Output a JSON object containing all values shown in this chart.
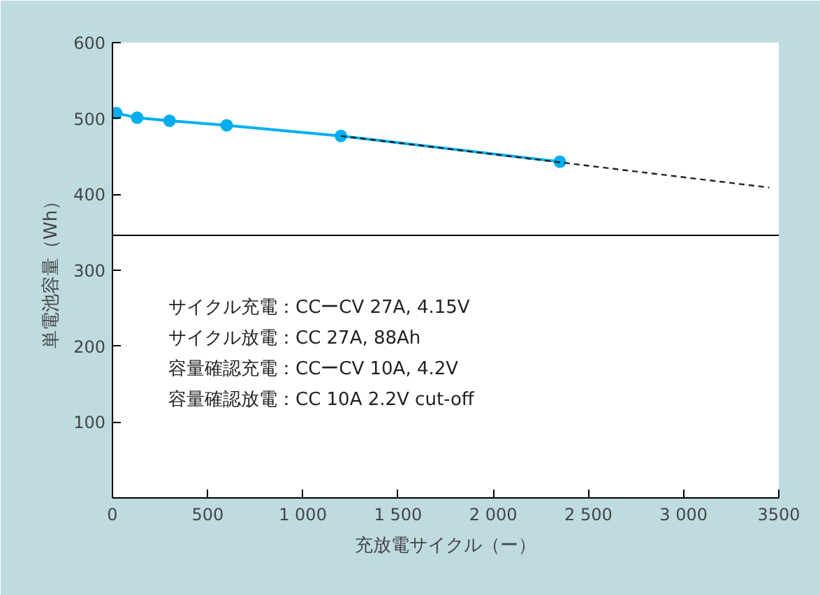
{
  "chart_data": {
    "type": "line",
    "xlabel": "充放電サイクル（ー）",
    "ylabel": "単電池容量（Wh）",
    "xlim": [
      0,
      3500
    ],
    "ylim": [
      0,
      600
    ],
    "xticks": [
      0,
      500,
      {
        "value": 1000,
        "label": "1 000"
      },
      {
        "value": 1500,
        "label": "1 500"
      },
      {
        "value": 2000,
        "label": "2 000"
      },
      {
        "value": 2500,
        "label": "2 500"
      },
      {
        "value": 3000,
        "label": "3 000"
      },
      3500
    ],
    "yticks": [
      100,
      200,
      300,
      400,
      500,
      600
    ],
    "grid": false,
    "series": [
      {
        "color": "#00aeef",
        "marker": "circle",
        "line_style": "solid",
        "x": [
          20,
          130,
          300,
          600,
          1200,
          2350
        ],
        "values": [
          507,
          501,
          497,
          491,
          477,
          443
        ]
      },
      {
        "color": "#222222",
        "marker": "none",
        "line_style": "dashed",
        "x": [
          1200,
          3450
        ],
        "values": [
          477,
          409
        ]
      }
    ],
    "ref_lines": [
      {
        "axis": "y",
        "value": 346,
        "label": null,
        "color": "#000000"
      }
    ],
    "annotations": [
      "サイクル充電：CCーCV 27A,  4.15V",
      "サイクル放電：CC  27A, 88Ah",
      "容量確認充電：CCーCV  10A,  4.2V",
      "容量確認放電：CC  10A  2.2V  cut-off"
    ]
  }
}
